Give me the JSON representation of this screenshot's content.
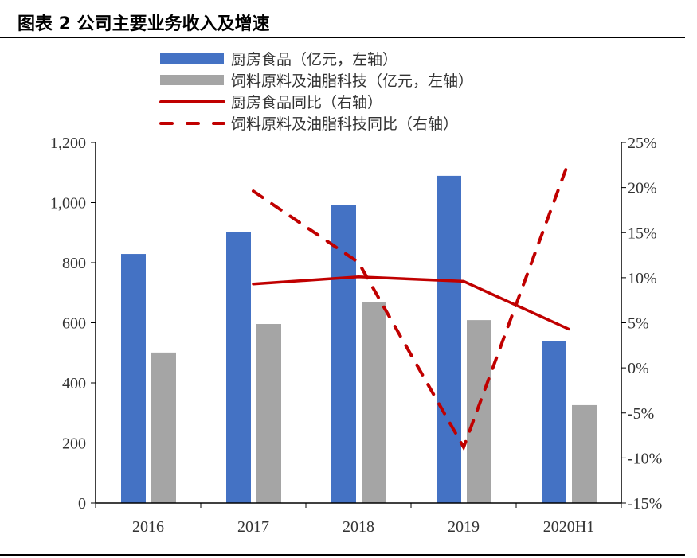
{
  "title": "图表 2  公司主要业务收入及增速",
  "chart_data": {
    "type": "bar+line",
    "categories": [
      "2016",
      "2017",
      "2018",
      "2019",
      "2020H1"
    ],
    "left_axis": {
      "range": [
        0,
        1200
      ],
      "ticks": [
        "0",
        "200",
        "400",
        "600",
        "800",
        "1,000",
        "1,200"
      ]
    },
    "right_axis": {
      "range": [
        -15,
        25
      ],
      "ticks": [
        "-15%",
        "-10%",
        "-5%",
        "0%",
        "5%",
        "10%",
        "15%",
        "20%",
        "25%"
      ]
    },
    "grid": false,
    "legend_position": "top",
    "series": [
      {
        "name": "厨房食品（亿元，左轴）",
        "type": "bar",
        "axis": "left",
        "color": "#4472C4",
        "values": [
          829,
          903,
          993,
          1089,
          540
        ]
      },
      {
        "name": "饲料原料及油脂科技（亿元，左轴）",
        "type": "bar",
        "axis": "left",
        "color": "#A5A5A5",
        "values": [
          501,
          596,
          670,
          609,
          326
        ]
      },
      {
        "name": "厨房食品同比（右轴）",
        "type": "line",
        "axis": "right",
        "color": "#C00000",
        "dash": false,
        "values": [
          null,
          9.3,
          10.1,
          9.6,
          4.3
        ]
      },
      {
        "name": "饲料原料及油脂科技同比（右轴）",
        "type": "line",
        "axis": "right",
        "color": "#C00000",
        "dash": true,
        "values": [
          null,
          19.6,
          11.7,
          -8.8,
          22.9
        ]
      }
    ]
  }
}
